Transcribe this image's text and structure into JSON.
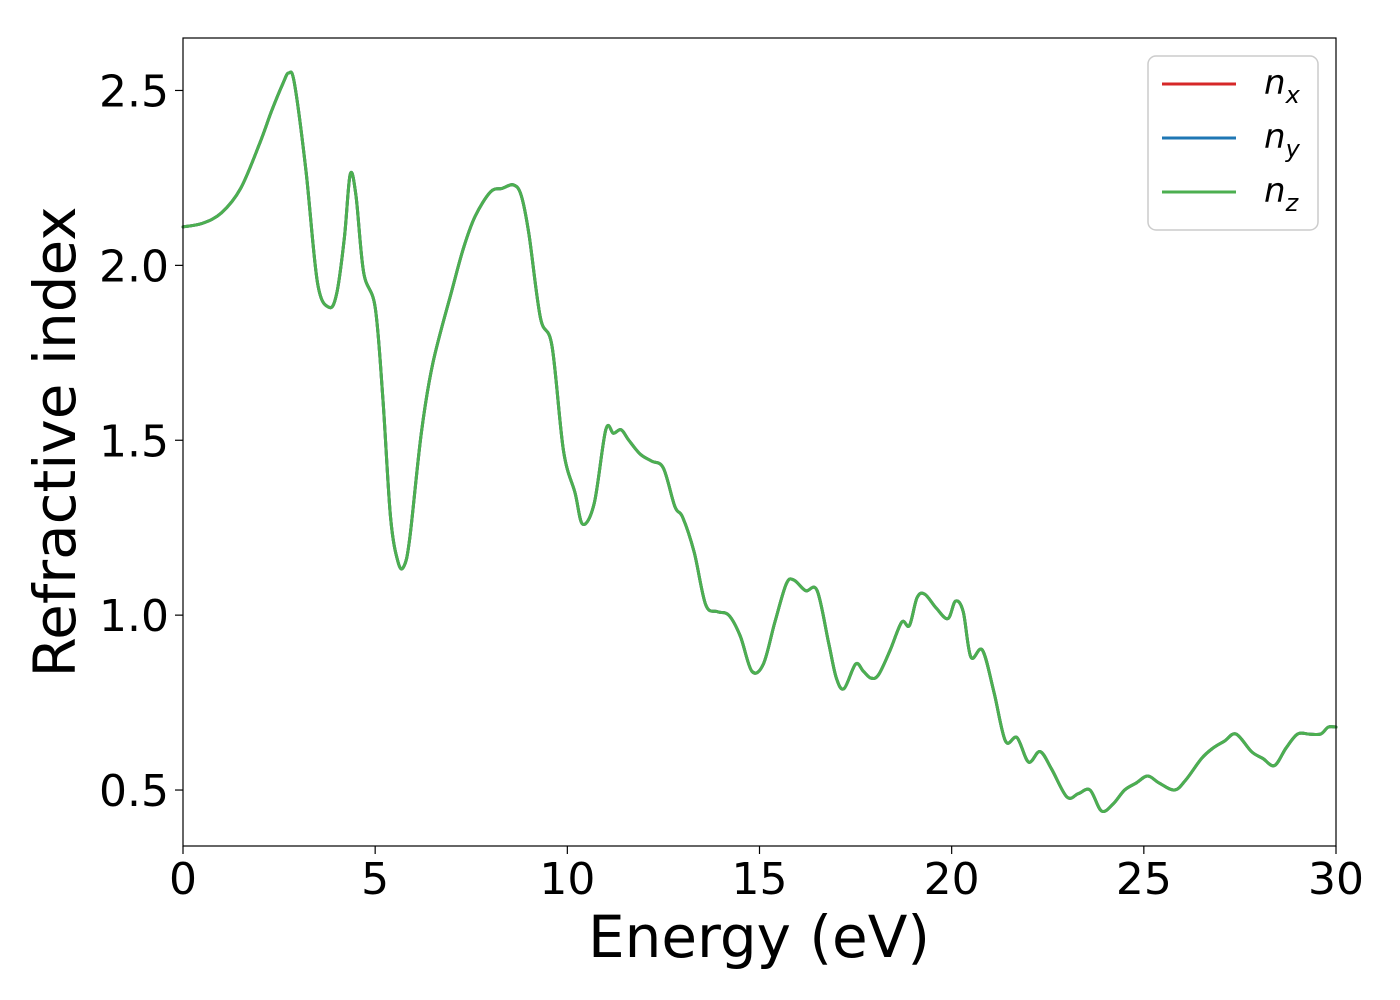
{
  "chart_data": {
    "type": "line",
    "title": "",
    "xlabel": "Energy (eV)",
    "ylabel": "Refractive index",
    "xlim": [
      0,
      30
    ],
    "ylim": [
      0.34,
      2.65
    ],
    "xticks": [
      0,
      5,
      10,
      15,
      20,
      25,
      30
    ],
    "xtick_labels": [
      "0",
      "5",
      "10",
      "15",
      "20",
      "25",
      "30"
    ],
    "yticks": [
      0.5,
      1.0,
      1.5,
      2.0,
      2.5
    ],
    "ytick_labels": [
      "0.5",
      "1.0",
      "1.5",
      "2.0",
      "2.5"
    ],
    "grid": false,
    "legend_position": "top-right",
    "colors": {
      "n_x": "#d62728",
      "n_y": "#1f77b4",
      "n_z": "#4caf50"
    },
    "series": [
      {
        "name": "n_x",
        "label_base": "n",
        "label_sub": "x",
        "color": "#d62728",
        "x": [
          0,
          0.5,
          1,
          1.5,
          2,
          2.3,
          2.6,
          2.75,
          2.9,
          3.2,
          3.5,
          3.8,
          4.0,
          4.2,
          4.35,
          4.5,
          4.7,
          5.0,
          5.2,
          5.4,
          5.6,
          5.75,
          5.9,
          6.2,
          6.5,
          7.0,
          7.3,
          7.6,
          8.0,
          8.3,
          8.6,
          8.8,
          9.0,
          9.3,
          9.6,
          9.9,
          10.2,
          10.4,
          10.7,
          11.0,
          11.2,
          11.4,
          11.6,
          11.9,
          12.2,
          12.5,
          12.8,
          13.0,
          13.3,
          13.6,
          13.9,
          14.2,
          14.5,
          14.8,
          15.1,
          15.4,
          15.7,
          15.9,
          16.2,
          16.5,
          16.8,
          17.0,
          17.2,
          17.5,
          17.7,
          17.9,
          18.1,
          18.4,
          18.7,
          18.9,
          19.1,
          19.3,
          19.6,
          19.9,
          20.1,
          20.3,
          20.5,
          20.8,
          21.1,
          21.4,
          21.7,
          22.0,
          22.3,
          22.6,
          23.0,
          23.3,
          23.6,
          23.9,
          24.2,
          24.5,
          24.8,
          25.1,
          25.4,
          25.8,
          26.1,
          26.5,
          26.8,
          27.1,
          27.4,
          27.8,
          28.1,
          28.4,
          28.7,
          29.0,
          29.3,
          29.6,
          29.8,
          30.0
        ],
        "y": [
          2.11,
          2.12,
          2.15,
          2.22,
          2.35,
          2.44,
          2.52,
          2.55,
          2.52,
          2.27,
          1.95,
          1.88,
          1.92,
          2.08,
          2.26,
          2.2,
          1.98,
          1.88,
          1.62,
          1.28,
          1.15,
          1.14,
          1.22,
          1.52,
          1.72,
          1.93,
          2.05,
          2.14,
          2.21,
          2.22,
          2.23,
          2.2,
          2.09,
          1.85,
          1.77,
          1.47,
          1.35,
          1.26,
          1.32,
          1.53,
          1.52,
          1.53,
          1.5,
          1.46,
          1.44,
          1.42,
          1.31,
          1.28,
          1.18,
          1.03,
          1.01,
          1.0,
          0.94,
          0.84,
          0.86,
          0.98,
          1.09,
          1.1,
          1.07,
          1.07,
          0.92,
          0.82,
          0.79,
          0.86,
          0.84,
          0.82,
          0.83,
          0.9,
          0.98,
          0.97,
          1.05,
          1.06,
          1.02,
          0.99,
          1.04,
          1.01,
          0.88,
          0.9,
          0.78,
          0.64,
          0.65,
          0.58,
          0.61,
          0.56,
          0.48,
          0.49,
          0.5,
          0.44,
          0.46,
          0.5,
          0.52,
          0.54,
          0.52,
          0.5,
          0.53,
          0.59,
          0.62,
          0.64,
          0.66,
          0.61,
          0.59,
          0.57,
          0.62,
          0.66,
          0.66,
          0.66,
          0.68,
          0.68
        ]
      },
      {
        "name": "n_y",
        "label_base": "n",
        "label_sub": "y",
        "color": "#1f77b4",
        "x": [
          0,
          0.5,
          1,
          1.5,
          2,
          2.3,
          2.6,
          2.75,
          2.9,
          3.2,
          3.5,
          3.8,
          4.0,
          4.2,
          4.35,
          4.5,
          4.7,
          5.0,
          5.2,
          5.4,
          5.6,
          5.75,
          5.9,
          6.2,
          6.5,
          7.0,
          7.3,
          7.6,
          8.0,
          8.3,
          8.6,
          8.8,
          9.0,
          9.3,
          9.6,
          9.9,
          10.2,
          10.4,
          10.7,
          11.0,
          11.2,
          11.4,
          11.6,
          11.9,
          12.2,
          12.5,
          12.8,
          13.0,
          13.3,
          13.6,
          13.9,
          14.2,
          14.5,
          14.8,
          15.1,
          15.4,
          15.7,
          15.9,
          16.2,
          16.5,
          16.8,
          17.0,
          17.2,
          17.5,
          17.7,
          17.9,
          18.1,
          18.4,
          18.7,
          18.9,
          19.1,
          19.3,
          19.6,
          19.9,
          20.1,
          20.3,
          20.5,
          20.8,
          21.1,
          21.4,
          21.7,
          22.0,
          22.3,
          22.6,
          23.0,
          23.3,
          23.6,
          23.9,
          24.2,
          24.5,
          24.8,
          25.1,
          25.4,
          25.8,
          26.1,
          26.5,
          26.8,
          27.1,
          27.4,
          27.8,
          28.1,
          28.4,
          28.7,
          29.0,
          29.3,
          29.6,
          29.8,
          30.0
        ],
        "y": [
          2.11,
          2.12,
          2.15,
          2.22,
          2.35,
          2.44,
          2.52,
          2.55,
          2.52,
          2.27,
          1.95,
          1.88,
          1.92,
          2.08,
          2.26,
          2.2,
          1.98,
          1.88,
          1.62,
          1.28,
          1.15,
          1.14,
          1.22,
          1.52,
          1.72,
          1.93,
          2.05,
          2.14,
          2.21,
          2.22,
          2.23,
          2.2,
          2.09,
          1.85,
          1.77,
          1.47,
          1.35,
          1.26,
          1.32,
          1.53,
          1.52,
          1.53,
          1.5,
          1.46,
          1.44,
          1.42,
          1.31,
          1.28,
          1.18,
          1.03,
          1.01,
          1.0,
          0.94,
          0.84,
          0.86,
          0.98,
          1.09,
          1.1,
          1.07,
          1.07,
          0.92,
          0.82,
          0.79,
          0.86,
          0.84,
          0.82,
          0.83,
          0.9,
          0.98,
          0.97,
          1.05,
          1.06,
          1.02,
          0.99,
          1.04,
          1.01,
          0.88,
          0.9,
          0.78,
          0.64,
          0.65,
          0.58,
          0.61,
          0.56,
          0.48,
          0.49,
          0.5,
          0.44,
          0.46,
          0.5,
          0.52,
          0.54,
          0.52,
          0.5,
          0.53,
          0.59,
          0.62,
          0.64,
          0.66,
          0.61,
          0.59,
          0.57,
          0.62,
          0.66,
          0.66,
          0.66,
          0.68,
          0.68
        ]
      },
      {
        "name": "n_z",
        "label_base": "n",
        "label_sub": "z",
        "color": "#4caf50",
        "x": [
          0,
          0.5,
          1,
          1.5,
          2,
          2.3,
          2.6,
          2.75,
          2.9,
          3.2,
          3.5,
          3.8,
          4.0,
          4.2,
          4.35,
          4.5,
          4.7,
          5.0,
          5.2,
          5.4,
          5.6,
          5.75,
          5.9,
          6.2,
          6.5,
          7.0,
          7.3,
          7.6,
          8.0,
          8.3,
          8.6,
          8.8,
          9.0,
          9.3,
          9.6,
          9.9,
          10.2,
          10.4,
          10.7,
          11.0,
          11.2,
          11.4,
          11.6,
          11.9,
          12.2,
          12.5,
          12.8,
          13.0,
          13.3,
          13.6,
          13.9,
          14.2,
          14.5,
          14.8,
          15.1,
          15.4,
          15.7,
          15.9,
          16.2,
          16.5,
          16.8,
          17.0,
          17.2,
          17.5,
          17.7,
          17.9,
          18.1,
          18.4,
          18.7,
          18.9,
          19.1,
          19.3,
          19.6,
          19.9,
          20.1,
          20.3,
          20.5,
          20.8,
          21.1,
          21.4,
          21.7,
          22.0,
          22.3,
          22.6,
          23.0,
          23.3,
          23.6,
          23.9,
          24.2,
          24.5,
          24.8,
          25.1,
          25.4,
          25.8,
          26.1,
          26.5,
          26.8,
          27.1,
          27.4,
          27.8,
          28.1,
          28.4,
          28.7,
          29.0,
          29.3,
          29.6,
          29.8,
          30.0
        ],
        "y": [
          2.11,
          2.12,
          2.15,
          2.22,
          2.35,
          2.44,
          2.52,
          2.55,
          2.52,
          2.27,
          1.95,
          1.88,
          1.92,
          2.08,
          2.26,
          2.2,
          1.98,
          1.88,
          1.62,
          1.28,
          1.15,
          1.14,
          1.22,
          1.52,
          1.72,
          1.93,
          2.05,
          2.14,
          2.21,
          2.22,
          2.23,
          2.2,
          2.09,
          1.85,
          1.77,
          1.47,
          1.35,
          1.26,
          1.32,
          1.53,
          1.52,
          1.53,
          1.5,
          1.46,
          1.44,
          1.42,
          1.31,
          1.28,
          1.18,
          1.03,
          1.01,
          1.0,
          0.94,
          0.84,
          0.86,
          0.98,
          1.09,
          1.1,
          1.07,
          1.07,
          0.92,
          0.82,
          0.79,
          0.86,
          0.84,
          0.82,
          0.83,
          0.9,
          0.98,
          0.97,
          1.05,
          1.06,
          1.02,
          0.99,
          1.04,
          1.01,
          0.88,
          0.9,
          0.78,
          0.64,
          0.65,
          0.58,
          0.61,
          0.56,
          0.48,
          0.49,
          0.5,
          0.44,
          0.46,
          0.5,
          0.52,
          0.54,
          0.52,
          0.5,
          0.53,
          0.59,
          0.62,
          0.64,
          0.66,
          0.61,
          0.59,
          0.57,
          0.62,
          0.66,
          0.66,
          0.66,
          0.68,
          0.68
        ]
      }
    ]
  }
}
